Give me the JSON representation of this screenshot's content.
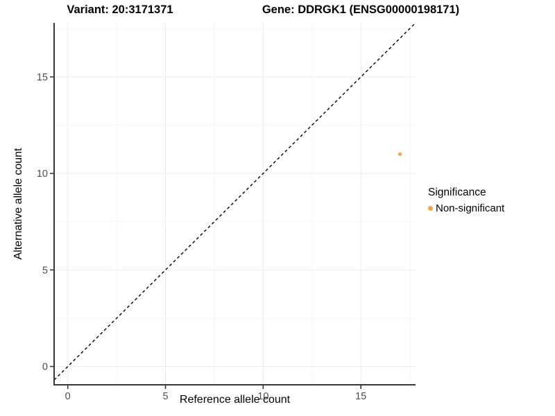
{
  "chart_data": {
    "type": "scatter",
    "titles": {
      "left": "Variant: 20:3171371",
      "right": "Gene: DDRGK1 (ENSG00000198171)"
    },
    "xlabel": "Reference allele count",
    "ylabel": "Alternative allele count",
    "xlim": [
      -0.7,
      17.8
    ],
    "ylim": [
      -0.95,
      17.8
    ],
    "x_ticks": [
      0,
      5,
      10,
      15
    ],
    "y_ticks": [
      0,
      5,
      10,
      15
    ],
    "x_minor_ticks": [
      2.5,
      7.5,
      12.5,
      17.5
    ],
    "y_minor_ticks": [
      2.5,
      7.5,
      12.5,
      17.5
    ],
    "grid": true,
    "points": [
      {
        "x": 17,
        "y": 11,
        "series": "Non-significant",
        "color": "#FAA43A"
      }
    ],
    "reference_line": {
      "slope": 1,
      "intercept": 0,
      "style": "dashed",
      "color": "#000000"
    },
    "legend": {
      "title": "Significance",
      "position": "right",
      "entries": [
        {
          "label": "Non-significant",
          "color": "#FAA43A",
          "marker": "circle"
        }
      ]
    }
  },
  "colors": {
    "background": "#FFFFFF",
    "axis_line": "#383838",
    "tick_mark": "#383838",
    "tick_label": "#4D4D4D",
    "grid_major": "#EBEBEB",
    "grid_minor": "#F5F5F5",
    "point": "#FAA43A"
  }
}
